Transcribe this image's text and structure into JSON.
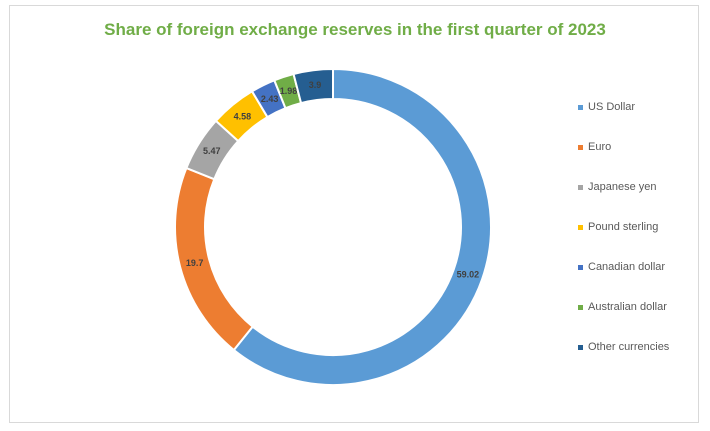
{
  "chart_data": {
    "type": "pie",
    "variant": "doughnut",
    "title": "Share of foreign exchange reserves in the first quarter of 2023",
    "title_color": "#70ad47",
    "categories": [
      "US Dollar",
      "Euro",
      "Japanese yen",
      "Pound sterling",
      "Canadian dollar",
      "Australian dollar",
      "Other currencies"
    ],
    "values": [
      59.02,
      19.7,
      5.47,
      4.58,
      2.43,
      1.98,
      3.9
    ],
    "data_labels": [
      "59.02",
      "19.7",
      "5.47",
      "4.58",
      "2.43",
      "1.98",
      "3.9"
    ],
    "colors": [
      "#5b9bd5",
      "#ed7d31",
      "#a5a5a5",
      "#ffc000",
      "#4472c4",
      "#70ad47",
      "#255e91"
    ],
    "legend_position": "right",
    "start_angle_deg": 0,
    "direction": "clockwise"
  }
}
